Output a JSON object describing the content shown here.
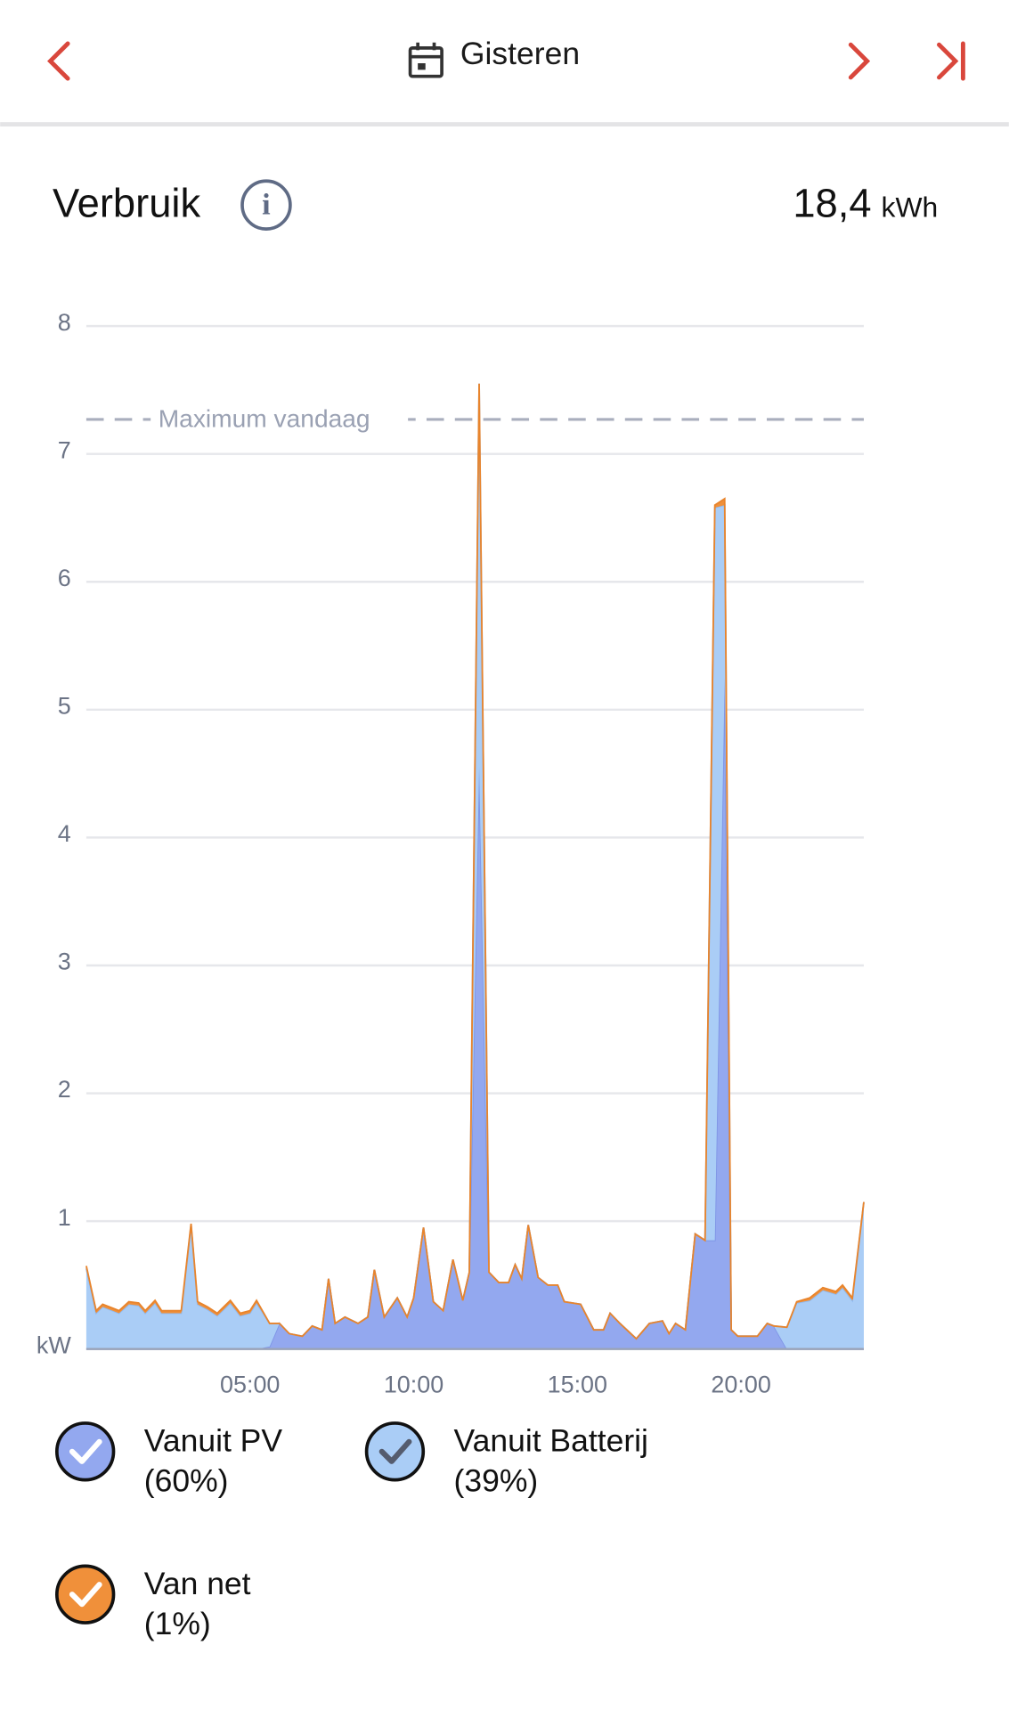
{
  "header": {
    "title": "Gisteren"
  },
  "summary": {
    "title": "Verbruik",
    "total": "18,4",
    "unit": "kWh"
  },
  "chart_data": {
    "type": "stacked-area",
    "x": [
      0,
      0.3,
      0.5,
      1,
      1.3,
      1.6,
      1.8,
      2.1,
      2.3,
      2.9,
      3.2,
      3.4,
      3.7,
      4.0,
      4.4,
      4.7,
      5.0,
      5.2,
      5.6,
      5.9,
      6.2,
      6.6,
      6.9,
      7.2,
      7.4,
      7.6,
      7.9,
      8.3,
      8.6,
      8.8,
      9.1,
      9.5,
      9.8,
      10.0,
      10.3,
      10.6,
      10.9,
      11.2,
      11.5,
      11.7,
      12.0,
      12.3,
      12.6,
      12.9,
      13.1,
      13.3,
      13.5,
      13.8,
      14.1,
      14.4,
      14.6,
      15.1,
      15.5,
      15.8,
      16.0,
      16.3,
      16.8,
      17.2,
      17.6,
      17.8,
      18.0,
      18.3,
      18.6,
      18.9,
      19.2,
      19.5,
      19.7,
      19.9,
      20.5,
      20.8,
      21.0,
      21.4,
      21.7,
      22.1,
      22.5,
      22.9,
      23.1,
      23.4,
      23.75
    ],
    "series": [
      {
        "name": "Vanuit PV",
        "share": "(60%)",
        "color": "#93a8ef",
        "line": "#7f95e6",
        "values": [
          0,
          0,
          0,
          0,
          0,
          0,
          0,
          0,
          0,
          0,
          0,
          0,
          0,
          0,
          0,
          0,
          0,
          0,
          0.02,
          0.2,
          0.12,
          0.1,
          0.18,
          0.15,
          0.55,
          0.2,
          0.25,
          0.2,
          0.25,
          0.62,
          0.25,
          0.4,
          0.25,
          0.4,
          0.95,
          0.37,
          0.3,
          0.7,
          0.38,
          0.6,
          4.55,
          0.6,
          0.52,
          0.52,
          0.66,
          0.55,
          0.97,
          0.56,
          0.5,
          0.5,
          0.37,
          0.35,
          0.15,
          0.15,
          0.28,
          0.2,
          0.08,
          0.2,
          0.22,
          0.12,
          0.2,
          0.15,
          0.9,
          0.85,
          0.85,
          5.25,
          0.15,
          0.1,
          0.1,
          0.2,
          0.18,
          0,
          0,
          0,
          0,
          0,
          0,
          0,
          0
        ]
      },
      {
        "name": "Vanuit Batterij",
        "share": "(39%)",
        "color": "#aacdf6",
        "line": "#8fbaf0",
        "values": [
          0.63,
          0.28,
          0.33,
          0.28,
          0.35,
          0.34,
          0.28,
          0.36,
          0.28,
          0.28,
          0.97,
          0.35,
          0.31,
          0.26,
          0.36,
          0.26,
          0.28,
          0.36,
          0.18,
          0,
          0,
          0,
          0,
          0,
          0,
          0,
          0,
          0,
          0,
          0,
          0,
          0,
          0,
          0,
          0,
          0,
          0,
          0,
          0,
          0,
          3.0,
          0,
          0,
          0,
          0,
          0,
          0,
          0,
          0,
          0,
          0,
          0,
          0,
          0,
          0,
          0,
          0,
          0,
          0,
          0,
          0,
          0,
          0,
          0,
          5.73,
          1.35,
          0,
          0,
          0,
          0,
          0,
          0.17,
          0.36,
          0.38,
          0.46,
          0.43,
          0.48,
          0.38,
          1.15
        ]
      },
      {
        "name": "Van net",
        "share": "(1%)",
        "color": "#f0903a",
        "line": "#e8842c",
        "values": [
          0.02,
          0.02,
          0.02,
          0.02,
          0.02,
          0.02,
          0.02,
          0.02,
          0.02,
          0.02,
          0.01,
          0.02,
          0.02,
          0.02,
          0.02,
          0.02,
          0.02,
          0.02,
          0,
          0,
          0,
          0,
          0,
          0,
          0,
          0,
          0,
          0,
          0,
          0,
          0,
          0,
          0,
          0,
          0,
          0,
          0,
          0,
          0,
          0,
          0,
          0,
          0,
          0,
          0,
          0,
          0,
          0,
          0,
          0,
          0,
          0,
          0,
          0,
          0,
          0,
          0,
          0,
          0,
          0,
          0,
          0,
          0,
          0,
          0.02,
          0.05,
          0,
          0,
          0,
          0,
          0,
          0,
          0.01,
          0.02,
          0.02,
          0.02,
          0.02,
          0.02,
          0
        ]
      }
    ],
    "xlim": [
      0,
      23.75
    ],
    "xticks": [
      {
        "value": 5,
        "label": "05:00"
      },
      {
        "value": 10,
        "label": "10:00"
      },
      {
        "value": 15,
        "label": "15:00"
      },
      {
        "value": 20,
        "label": "20:00"
      }
    ],
    "ylim": [
      0,
      8
    ],
    "yticks": [
      {
        "value": 0,
        "label": "kW"
      },
      1,
      2,
      3,
      4,
      5,
      6,
      7,
      8
    ],
    "grid": true,
    "annotations": [
      {
        "label": "Maximum vandaag",
        "value": 7.27
      }
    ]
  }
}
